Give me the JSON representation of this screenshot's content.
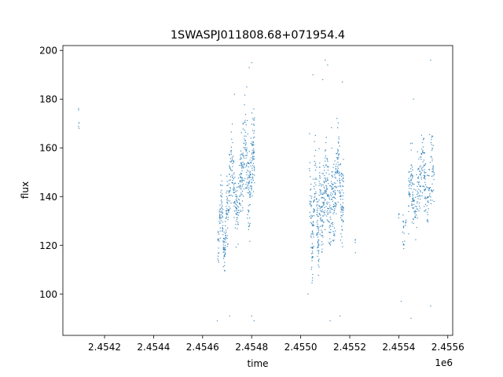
{
  "chart_data": {
    "type": "scatter",
    "title": "1SWASPJ011808.68+071954.4",
    "xlabel": "time",
    "ylabel": "flux",
    "x_offset_label": "1e6",
    "xlim": [
      2.45403,
      2.45562
    ],
    "ylim": [
      83,
      202
    ],
    "x_ticks": [
      2.4542,
      2.4544,
      2.4546,
      2.4548,
      2.455,
      2.4552,
      2.4554,
      2.4556
    ],
    "x_tick_labels": [
      "2.4542",
      "2.4544",
      "2.4546",
      "2.4548",
      "2.4550",
      "2.4552",
      "2.4554",
      "2.4556"
    ],
    "y_ticks": [
      100,
      120,
      140,
      160,
      180,
      200
    ],
    "y_tick_labels": [
      "100",
      "120",
      "140",
      "160",
      "180",
      "200"
    ],
    "grid": false,
    "marker_color": "#1f77b4",
    "segments": [
      {
        "x_start": 2.454093,
        "x_end": 2.454097,
        "y_center": 170,
        "amp": 3,
        "noise": 3,
        "count": 6
      },
      {
        "x_start": 2.454662,
        "x_end": 2.4547,
        "y_center": 128,
        "amp": 10,
        "noise": 5,
        "count": 140
      },
      {
        "x_start": 2.4547,
        "x_end": 2.45476,
        "y_center": 143,
        "amp": 9,
        "noise": 7,
        "count": 200
      },
      {
        "x_start": 2.45476,
        "x_end": 2.454812,
        "y_center": 150,
        "amp": 10,
        "noise": 9,
        "count": 220
      },
      {
        "x_start": 2.455035,
        "x_end": 2.455075,
        "y_center": 135,
        "amp": 14,
        "noise": 8,
        "count": 160
      },
      {
        "x_start": 2.455075,
        "x_end": 2.455125,
        "y_center": 140,
        "amp": 8,
        "noise": 8,
        "count": 200
      },
      {
        "x_start": 2.455125,
        "x_end": 2.455175,
        "y_center": 146,
        "amp": 10,
        "noise": 9,
        "count": 200
      },
      {
        "x_start": 2.455222,
        "x_end": 2.455224,
        "y_center": 121,
        "amp": 1,
        "noise": 2,
        "count": 4
      },
      {
        "x_start": 2.4554,
        "x_end": 2.455402,
        "y_center": 132,
        "amp": 1,
        "noise": 1,
        "count": 4
      },
      {
        "x_start": 2.455415,
        "x_end": 2.45543,
        "y_center": 123,
        "amp": 5,
        "noise": 3,
        "count": 20
      },
      {
        "x_start": 2.45544,
        "x_end": 2.45549,
        "y_center": 140,
        "amp": 7,
        "noise": 6,
        "count": 140
      },
      {
        "x_start": 2.45549,
        "x_end": 2.455545,
        "y_center": 148,
        "amp": 6,
        "noise": 7,
        "count": 140
      }
    ],
    "outliers": [
      {
        "x": 2.4548,
        "y": 195
      },
      {
        "x": 2.45479,
        "y": 193
      },
      {
        "x": 2.4548,
        "y": 91
      },
      {
        "x": 2.45481,
        "y": 89
      },
      {
        "x": 2.45478,
        "y": 185
      },
      {
        "x": 2.45473,
        "y": 182
      },
      {
        "x": 2.45471,
        "y": 91
      },
      {
        "x": 2.45466,
        "y": 89
      },
      {
        "x": 2.45505,
        "y": 190
      },
      {
        "x": 2.4551,
        "y": 196
      },
      {
        "x": 2.45511,
        "y": 194
      },
      {
        "x": 2.45509,
        "y": 188
      },
      {
        "x": 2.45512,
        "y": 89
      },
      {
        "x": 2.45516,
        "y": 91
      },
      {
        "x": 2.45517,
        "y": 187
      },
      {
        "x": 2.45503,
        "y": 100
      },
      {
        "x": 2.45553,
        "y": 196
      },
      {
        "x": 2.45545,
        "y": 90
      },
      {
        "x": 2.45553,
        "y": 95
      },
      {
        "x": 2.45546,
        "y": 180
      },
      {
        "x": 2.45541,
        "y": 97
      }
    ]
  }
}
